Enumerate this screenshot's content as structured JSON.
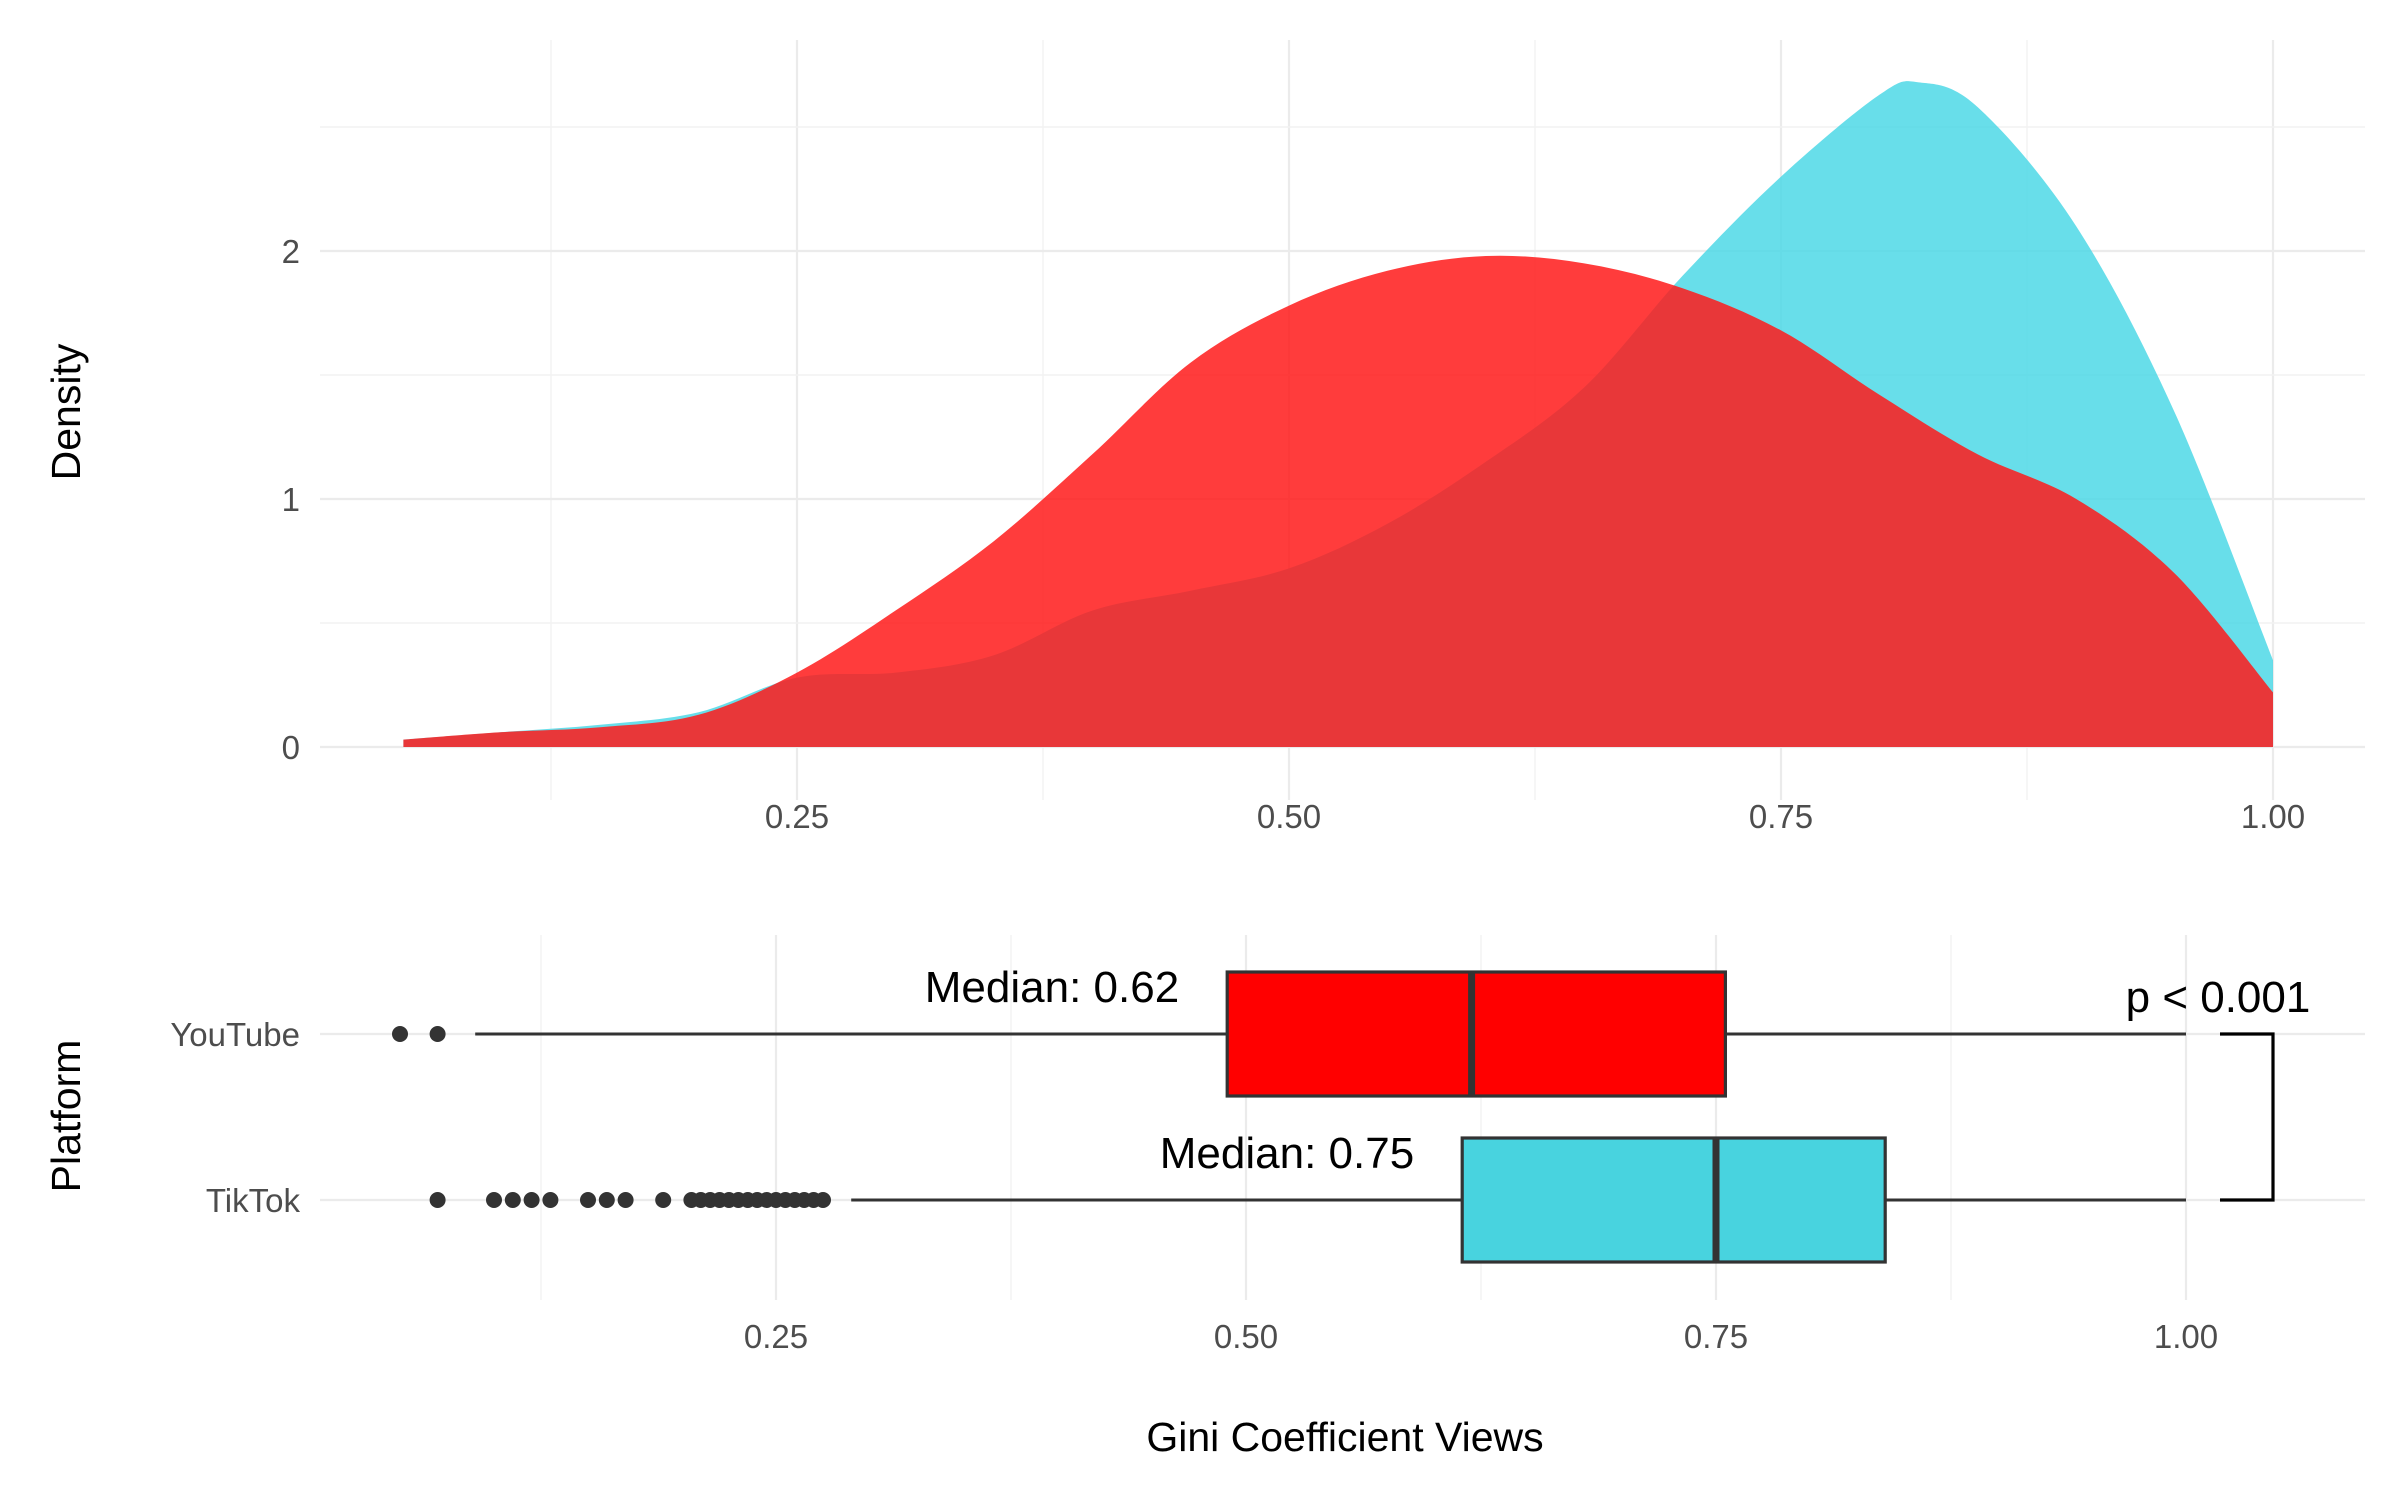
{
  "chart_data": [
    {
      "type": "area",
      "subtype": "density",
      "title": "",
      "xlabel": "",
      "ylabel": "Density",
      "xlim": [
        0.0,
        1.05
      ],
      "ylim": [
        0,
        2.8
      ],
      "x_ticks": [
        "0.25",
        "0.50",
        "0.75",
        "1.00"
      ],
      "y_ticks": [
        "0",
        "1",
        "2"
      ],
      "grid": true,
      "legend": "none",
      "series": [
        {
          "name": "TikTok",
          "color": "#4dd8e6",
          "x": [
            0.05,
            0.1,
            0.15,
            0.2,
            0.25,
            0.3,
            0.35,
            0.4,
            0.45,
            0.5,
            0.55,
            0.6,
            0.65,
            0.7,
            0.75,
            0.8,
            0.82,
            0.85,
            0.9,
            0.95,
            1.0
          ],
          "y": [
            0.03,
            0.06,
            0.09,
            0.14,
            0.28,
            0.3,
            0.37,
            0.55,
            0.63,
            0.72,
            0.9,
            1.15,
            1.45,
            1.9,
            2.3,
            2.63,
            2.68,
            2.58,
            2.1,
            1.35,
            0.35
          ]
        },
        {
          "name": "YouTube",
          "color": "#ff1a1a",
          "x": [
            0.05,
            0.1,
            0.15,
            0.2,
            0.25,
            0.3,
            0.35,
            0.4,
            0.45,
            0.5,
            0.55,
            0.6,
            0.65,
            0.7,
            0.75,
            0.8,
            0.85,
            0.9,
            0.95,
            1.0
          ],
          "y": [
            0.03,
            0.06,
            0.08,
            0.13,
            0.3,
            0.55,
            0.83,
            1.18,
            1.55,
            1.78,
            1.92,
            1.98,
            1.95,
            1.85,
            1.68,
            1.42,
            1.18,
            1.0,
            0.7,
            0.22
          ]
        }
      ]
    },
    {
      "type": "boxplot",
      "title": "",
      "xlabel": "Gini Coefficient Views",
      "ylabel": "Platform",
      "xlim": [
        0.0,
        1.05
      ],
      "x_ticks": [
        "0.25",
        "0.50",
        "0.75",
        "1.00"
      ],
      "categories": [
        "YouTube",
        "TikTok"
      ],
      "grid": true,
      "series": [
        {
          "name": "YouTube",
          "color": "#ff0000",
          "whisker_low": 0.09,
          "q1": 0.49,
          "median": 0.62,
          "q3": 0.755,
          "whisker_high": 1.0,
          "outliers": [
            0.05,
            0.07
          ],
          "label": "Median: 0.62"
        },
        {
          "name": "TikTok",
          "color": "#48d3df",
          "whisker_low": 0.29,
          "q1": 0.615,
          "median": 0.75,
          "q3": 0.84,
          "whisker_high": 1.0,
          "outliers": [
            0.07,
            0.1,
            0.11,
            0.12,
            0.13,
            0.15,
            0.16,
            0.17,
            0.19,
            0.205,
            0.21,
            0.215,
            0.22,
            0.225,
            0.23,
            0.235,
            0.24,
            0.245,
            0.25,
            0.255,
            0.26,
            0.265,
            0.27,
            0.275
          ],
          "label": "Median: 0.75"
        }
      ],
      "annotation": "p < 0.001"
    }
  ]
}
